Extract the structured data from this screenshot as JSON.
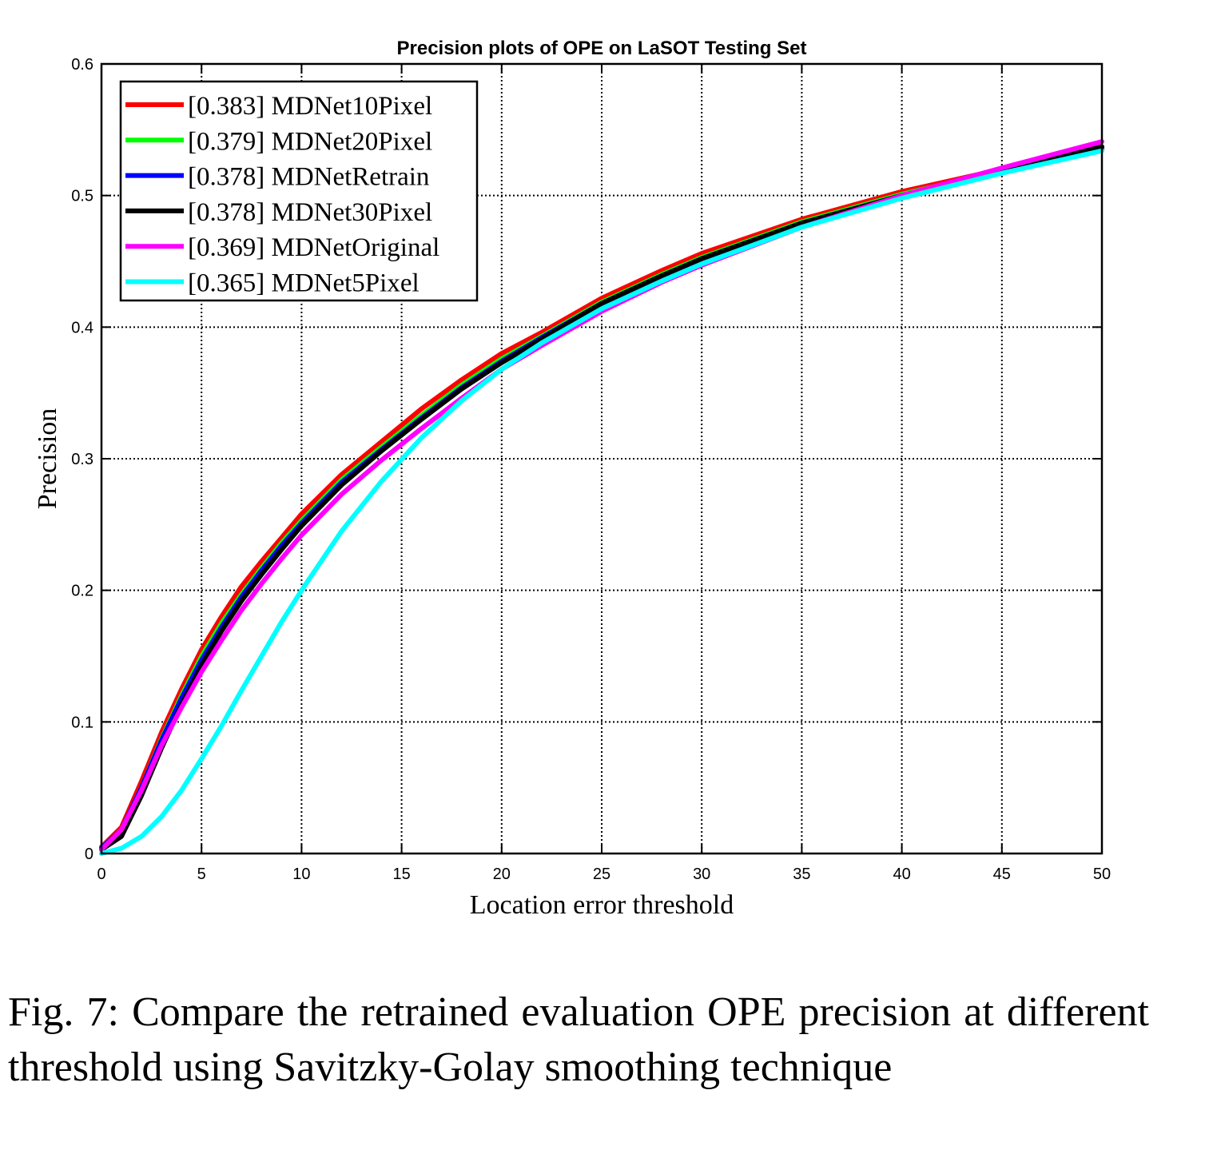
{
  "chart_data": {
    "type": "line",
    "title": "Precision plots of OPE on LaSOT Testing Set",
    "xlabel": "Location error threshold",
    "ylabel": "Precision",
    "xlim": [
      0,
      50
    ],
    "ylim": [
      0,
      0.6
    ],
    "xticks": [
      0,
      5,
      10,
      15,
      20,
      25,
      30,
      35,
      40,
      45,
      50
    ],
    "yticks": [
      0,
      0.1,
      0.2,
      0.3,
      0.4,
      0.5,
      0.6
    ],
    "ytick_labels": [
      "0",
      "0.1",
      "0.2",
      "0.3",
      "0.4",
      "0.5",
      "0.6"
    ],
    "grid": true,
    "legend_position": "top-left",
    "x": [
      0,
      1,
      2,
      3,
      4,
      5,
      6,
      7,
      8,
      9,
      10,
      12,
      14,
      16,
      18,
      20,
      22,
      25,
      28,
      30,
      35,
      40,
      45,
      50
    ],
    "series": [
      {
        "name": "[0.383] MDNet10Pixel",
        "color": "#ff0000",
        "values": [
          0.005,
          0.02,
          0.055,
          0.092,
          0.125,
          0.155,
          0.18,
          0.203,
          0.222,
          0.24,
          0.258,
          0.288,
          0.313,
          0.338,
          0.36,
          0.38,
          0.396,
          0.422,
          0.443,
          0.456,
          0.482,
          0.503,
          0.52,
          0.537
        ]
      },
      {
        "name": "[0.379] MDNet20Pixel",
        "color": "#00ff00",
        "values": [
          0.004,
          0.018,
          0.05,
          0.087,
          0.12,
          0.15,
          0.175,
          0.197,
          0.217,
          0.236,
          0.253,
          0.284,
          0.309,
          0.333,
          0.356,
          0.376,
          0.393,
          0.419,
          0.44,
          0.453,
          0.48,
          0.501,
          0.519,
          0.536
        ]
      },
      {
        "name": "[0.378] MDNetRetrain",
        "color": "#0000ff",
        "values": [
          0.004,
          0.018,
          0.05,
          0.086,
          0.118,
          0.147,
          0.172,
          0.195,
          0.215,
          0.234,
          0.251,
          0.282,
          0.307,
          0.331,
          0.354,
          0.374,
          0.392,
          0.418,
          0.439,
          0.452,
          0.479,
          0.5,
          0.518,
          0.535
        ]
      },
      {
        "name": "[0.378] MDNet30Pixel",
        "color": "#000000",
        "values": [
          0.003,
          0.013,
          0.044,
          0.08,
          0.113,
          0.143,
          0.169,
          0.192,
          0.212,
          0.231,
          0.249,
          0.28,
          0.306,
          0.33,
          0.353,
          0.373,
          0.391,
          0.418,
          0.439,
          0.452,
          0.479,
          0.5,
          0.519,
          0.537
        ]
      },
      {
        "name": "[0.369] MDNetOriginal",
        "color": "#ff00ff",
        "values": [
          0.003,
          0.018,
          0.048,
          0.082,
          0.111,
          0.138,
          0.162,
          0.185,
          0.205,
          0.224,
          0.242,
          0.273,
          0.299,
          0.323,
          0.346,
          0.368,
          0.386,
          0.412,
          0.434,
          0.447,
          0.476,
          0.5,
          0.521,
          0.541
        ]
      },
      {
        "name": "[0.365] MDNet5Pixel",
        "color": "#00ffff",
        "values": [
          0.0,
          0.004,
          0.013,
          0.028,
          0.048,
          0.072,
          0.097,
          0.124,
          0.15,
          0.176,
          0.2,
          0.245,
          0.283,
          0.316,
          0.344,
          0.368,
          0.388,
          0.414,
          0.435,
          0.448,
          0.476,
          0.498,
          0.517,
          0.534
        ]
      }
    ]
  },
  "caption": "Fig. 7: Compare the retrained evaluation OPE precision at different threshold using Savitzky-Golay smoothing technique"
}
